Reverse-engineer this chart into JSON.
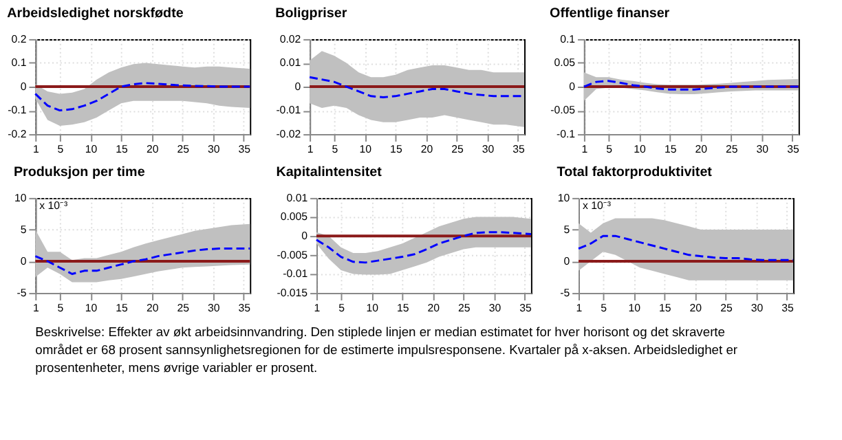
{
  "chart_data": [
    {
      "type": "line",
      "title": "Arbeidsledighet norskfødte",
      "x": [
        1,
        3,
        5,
        7,
        9,
        11,
        13,
        15,
        17,
        19,
        21,
        23,
        25,
        27,
        29,
        31,
        33,
        36
      ],
      "xlim": [
        1,
        36
      ],
      "xticks": [
        1,
        5,
        10,
        15,
        20,
        25,
        30,
        35
      ],
      "ylim": [
        -0.2,
        0.2
      ],
      "yticks": [
        -0.2,
        -0.1,
        0,
        0.1,
        0.2
      ],
      "grid": true,
      "line_style": "dashed",
      "series": [
        {
          "color": "#0000ff",
          "values": [
            -0.03,
            -0.08,
            -0.1,
            -0.095,
            -0.08,
            -0.06,
            -0.03,
            0.0,
            0.01,
            0.015,
            0.012,
            0.008,
            0.005,
            0.003,
            0.002,
            0.0,
            0.0,
            0.0
          ],
          "lower": [
            -0.05,
            -0.14,
            -0.165,
            -0.16,
            -0.15,
            -0.13,
            -0.1,
            -0.07,
            -0.06,
            -0.06,
            -0.06,
            -0.06,
            -0.06,
            -0.065,
            -0.07,
            -0.08,
            -0.085,
            -0.09
          ],
          "upper": [
            0.01,
            -0.02,
            -0.03,
            -0.025,
            -0.01,
            0.03,
            0.06,
            0.08,
            0.095,
            0.1,
            0.095,
            0.09,
            0.085,
            0.08,
            0.085,
            0.085,
            0.08,
            0.075
          ]
        }
      ],
      "ref_lines": [
        {
          "axis": "y",
          "value": 0,
          "color": "#8b1a1a"
        }
      ]
    },
    {
      "type": "line",
      "title": "Boligpriser",
      "x": [
        1,
        3,
        5,
        7,
        9,
        11,
        13,
        15,
        17,
        19,
        21,
        23,
        25,
        27,
        29,
        31,
        33,
        36
      ],
      "xlim": [
        1,
        36
      ],
      "xticks": [
        1,
        5,
        10,
        15,
        20,
        25,
        30,
        35
      ],
      "ylim": [
        -0.02,
        0.02
      ],
      "yticks": [
        -0.02,
        -0.01,
        0,
        0.01,
        0.02
      ],
      "grid": true,
      "line_style": "dashed",
      "series": [
        {
          "color": "#0000ff",
          "values": [
            0.004,
            0.003,
            0.002,
            0.0,
            -0.002,
            -0.004,
            -0.0045,
            -0.004,
            -0.003,
            -0.002,
            -0.001,
            -0.001,
            -0.002,
            -0.003,
            -0.0035,
            -0.004,
            -0.004,
            -0.004
          ],
          "lower": [
            -0.007,
            -0.009,
            -0.008,
            -0.009,
            -0.012,
            -0.014,
            -0.015,
            -0.015,
            -0.014,
            -0.013,
            -0.013,
            -0.012,
            -0.013,
            -0.014,
            -0.015,
            -0.016,
            -0.016,
            -0.017
          ],
          "upper": [
            0.011,
            0.015,
            0.013,
            0.01,
            0.006,
            0.004,
            0.004,
            0.005,
            0.007,
            0.008,
            0.009,
            0.009,
            0.008,
            0.007,
            0.007,
            0.006,
            0.006,
            0.006
          ]
        }
      ],
      "ref_lines": [
        {
          "axis": "y",
          "value": 0,
          "color": "#8b1a1a"
        }
      ]
    },
    {
      "type": "line",
      "title": "Offentlige finanser",
      "x": [
        1,
        3,
        5,
        7,
        9,
        11,
        13,
        15,
        17,
        19,
        21,
        23,
        25,
        27,
        29,
        31,
        33,
        36
      ],
      "xlim": [
        1,
        36
      ],
      "xticks": [
        1,
        5,
        10,
        15,
        20,
        25,
        30,
        35
      ],
      "ylim": [
        -0.1,
        0.1
      ],
      "yticks": [
        -0.1,
        -0.05,
        0,
        0.05,
        0.1
      ],
      "grid": true,
      "line_style": "dashed",
      "series": [
        {
          "color": "#0000ff",
          "values": [
            0.0,
            0.01,
            0.012,
            0.008,
            0.003,
            0.0,
            -0.004,
            -0.006,
            -0.006,
            -0.006,
            -0.004,
            -0.002,
            0.0,
            0.0,
            0.0,
            0.0,
            0.0,
            0.0
          ],
          "lower": [
            -0.03,
            -0.005,
            -0.002,
            -0.002,
            -0.005,
            -0.008,
            -0.012,
            -0.015,
            -0.016,
            -0.016,
            -0.014,
            -0.012,
            -0.01,
            -0.009,
            -0.008,
            -0.008,
            -0.008,
            -0.008
          ],
          "upper": [
            0.03,
            0.02,
            0.02,
            0.015,
            0.012,
            0.008,
            0.005,
            0.004,
            0.004,
            0.004,
            0.005,
            0.006,
            0.008,
            0.01,
            0.012,
            0.014,
            0.015,
            0.016
          ]
        }
      ],
      "ref_lines": [
        {
          "axis": "y",
          "value": 0,
          "color": "#8b1a1a"
        }
      ]
    },
    {
      "type": "line",
      "title": "Produksjon per time",
      "annotations": [
        "x 10⁻³"
      ],
      "x": [
        1,
        3,
        5,
        7,
        9,
        11,
        13,
        15,
        17,
        19,
        21,
        23,
        25,
        27,
        29,
        31,
        33,
        36
      ],
      "xlim": [
        1,
        36
      ],
      "xticks": [
        1,
        5,
        10,
        15,
        20,
        25,
        30,
        35
      ],
      "ylim": [
        -5,
        10
      ],
      "yticks": [
        -5,
        0,
        5,
        10
      ],
      "grid": true,
      "line_style": "dashed",
      "series": [
        {
          "color": "#0000ff",
          "values": [
            0.8,
            0,
            -1,
            -2,
            -1.5,
            -1.5,
            -1,
            -0.5,
            0,
            0.3,
            0.8,
            1.1,
            1.4,
            1.7,
            1.9,
            2,
            2,
            2
          ],
          "lower": [
            -2.5,
            -1,
            -2,
            -3.3,
            -3.3,
            -3.3,
            -3,
            -2.8,
            -2.4,
            -2,
            -1.6,
            -1.3,
            -1,
            -0.9,
            -0.8,
            -0.7,
            -0.6,
            -0.5
          ],
          "upper": [
            5,
            1.5,
            1.5,
            0.2,
            0.5,
            0.5,
            1,
            1.5,
            2.2,
            2.8,
            3.3,
            3.8,
            4.3,
            4.8,
            5.1,
            5.4,
            5.7,
            5.9
          ]
        }
      ],
      "ref_lines": [
        {
          "axis": "y",
          "value": 0,
          "color": "#8b1a1a"
        }
      ]
    },
    {
      "type": "line",
      "title": "Kapitalintensitet",
      "x": [
        1,
        3,
        5,
        7,
        9,
        11,
        13,
        15,
        17,
        19,
        21,
        23,
        25,
        27,
        29,
        31,
        33,
        36
      ],
      "xlim": [
        1,
        36
      ],
      "xticks": [
        1,
        5,
        10,
        15,
        20,
        25,
        30,
        35
      ],
      "ylim": [
        -0.015,
        0.01
      ],
      "yticks": [
        -0.015,
        -0.01,
        -0.005,
        0,
        0.005,
        0.01
      ],
      "grid": true,
      "line_style": "dashed",
      "series": [
        {
          "color": "#0000ff",
          "values": [
            -0.001,
            -0.003,
            -0.0055,
            -0.0068,
            -0.007,
            -0.0065,
            -0.006,
            -0.0055,
            -0.0048,
            -0.0035,
            -0.002,
            -0.001,
            0.0,
            0.0008,
            0.001,
            0.001,
            0.0008,
            0.0005
          ],
          "lower": [
            -0.002,
            -0.006,
            -0.009,
            -0.01,
            -0.0102,
            -0.0102,
            -0.01,
            -0.009,
            -0.008,
            -0.007,
            -0.0055,
            -0.0045,
            -0.0035,
            -0.003,
            -0.003,
            -0.003,
            -0.003,
            -0.003
          ],
          "upper": [
            0.001,
            0.0,
            -0.003,
            -0.0045,
            -0.0045,
            -0.004,
            -0.003,
            -0.002,
            -0.0005,
            0.001,
            0.0025,
            0.0035,
            0.0045,
            0.005,
            0.005,
            0.005,
            0.005,
            0.0045
          ]
        }
      ],
      "ref_lines": [
        {
          "axis": "y",
          "value": 0,
          "color": "#8b1a1a"
        }
      ]
    },
    {
      "type": "line",
      "title": "Total faktorproduktivitet",
      "annotations": [
        "x 10⁻³"
      ],
      "x": [
        1,
        3,
        5,
        7,
        9,
        11,
        13,
        15,
        17,
        19,
        21,
        23,
        25,
        27,
        29,
        31,
        33,
        36
      ],
      "xlim": [
        1,
        36
      ],
      "xticks": [
        1,
        5,
        10,
        15,
        20,
        25,
        30,
        35
      ],
      "ylim": [
        -5,
        10
      ],
      "yticks": [
        -5,
        0,
        5,
        10
      ],
      "grid": true,
      "line_style": "dashed",
      "series": [
        {
          "color": "#0000ff",
          "values": [
            2,
            2.8,
            4,
            4,
            3.5,
            3,
            2.5,
            2,
            1.5,
            1,
            0.8,
            0.6,
            0.5,
            0.5,
            0.3,
            0.2,
            0.2,
            0.2
          ],
          "lower": [
            -1.5,
            0,
            1.5,
            1,
            0,
            -1,
            -1.5,
            -2,
            -2.5,
            -3,
            -3,
            -3,
            -3,
            -3,
            -3,
            -3,
            -3,
            -3
          ],
          "upper": [
            6,
            4.5,
            6,
            6.8,
            6.8,
            6.8,
            6.8,
            6.5,
            6,
            5.5,
            5,
            5,
            5,
            5,
            5,
            5,
            5,
            5
          ]
        }
      ],
      "ref_lines": [
        {
          "axis": "y",
          "value": 0,
          "color": "#8b1a1a"
        }
      ]
    },
    {
      "type": "other",
      "annotations": [
        "Beskrivelse: Effekter av økt arbeidsinnvandring. Den stiplede linjen er median estimatet for hver horisont og det skraverte området er 68 prosent sannsynlighetsregionen for de estimerte impulsresponsene. Kvartaler på x-aksen. Arbeidsledighet er prosentenheter, mens øvrige variabler er prosent."
      ]
    }
  ]
}
